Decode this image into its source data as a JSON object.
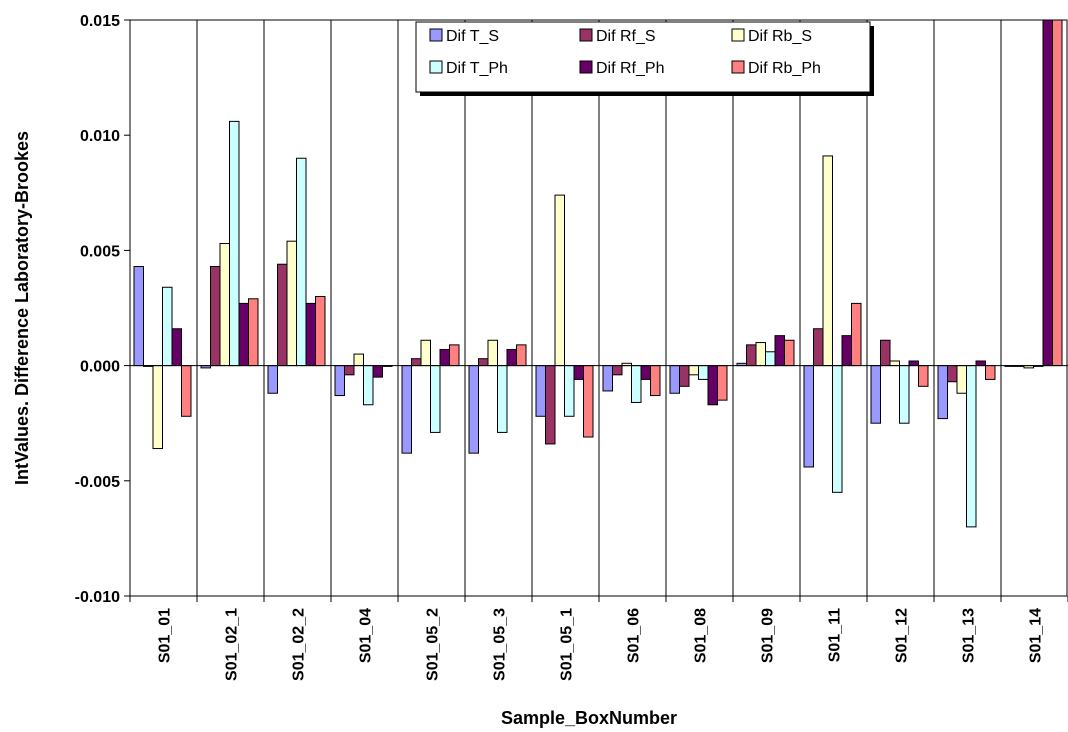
{
  "chart_data": {
    "type": "bar",
    "xlabel": "Sample_BoxNumber",
    "ylabel": "IntValues. Difference Laboratory-Brookes",
    "ylim": [
      -0.01,
      0.015
    ],
    "yticks": [
      "0.015",
      "0.010",
      "0.005",
      "0.000",
      "-0.005",
      "-0.010"
    ],
    "ytick_values": [
      0.015,
      0.01,
      0.005,
      0.0,
      -0.005,
      -0.01
    ],
    "grid": "vertical category separators",
    "legend_position": "top-center",
    "categories": [
      "S01_01",
      "S01_02_1",
      "S01_02_2",
      "S01_04",
      "S01_05_2",
      "S01_05_3",
      "S01_05_1",
      "S01_06",
      "S01_08",
      "S01_09",
      "S01_11",
      "S01_12",
      "S01_13",
      "S01_14"
    ],
    "series": [
      {
        "name": "Dif T_S",
        "color": "#9999ff",
        "values": [
          0.0043,
          -0.0001,
          -0.0012,
          -0.0013,
          -0.0038,
          -0.0038,
          -0.0022,
          -0.0011,
          -0.0012,
          0.0001,
          -0.0044,
          -0.0025,
          -0.0023,
          0.0
        ]
      },
      {
        "name": "Dif Rf_S",
        "color": "#993366",
        "values": [
          0.0,
          0.0043,
          0.0044,
          -0.0004,
          0.0003,
          0.0003,
          -0.0034,
          -0.0004,
          -0.0009,
          0.0009,
          0.0016,
          0.0011,
          -0.0007,
          0.0
        ]
      },
      {
        "name": "Dif Rb_S",
        "color": "#ffffcc",
        "values": [
          -0.0036,
          0.0053,
          0.0054,
          0.0005,
          0.0011,
          0.0011,
          0.0074,
          0.0001,
          -0.0004,
          0.001,
          0.0091,
          0.0002,
          -0.0012,
          -0.0001
        ]
      },
      {
        "name": "Dif T_Ph",
        "color": "#ccffff",
        "values": [
          0.0034,
          0.0106,
          0.009,
          -0.0017,
          -0.0029,
          -0.0029,
          -0.0022,
          -0.0016,
          -0.0006,
          0.0006,
          -0.0055,
          -0.0025,
          -0.007,
          0.0
        ]
      },
      {
        "name": "Dif Rf_Ph",
        "color": "#660066",
        "values": [
          0.0016,
          0.0027,
          0.0027,
          -0.0005,
          0.0007,
          0.0007,
          -0.0006,
          -0.0006,
          -0.0017,
          0.0013,
          0.0013,
          0.0002,
          0.0002,
          0.015
        ]
      },
      {
        "name": "Dif Rb_Ph",
        "color": "#ff8080",
        "values": [
          -0.0022,
          0.0029,
          0.003,
          0.0,
          0.0009,
          0.0009,
          -0.0031,
          -0.0013,
          -0.0015,
          0.0011,
          0.0027,
          -0.0009,
          -0.0006,
          0.015
        ]
      }
    ]
  }
}
